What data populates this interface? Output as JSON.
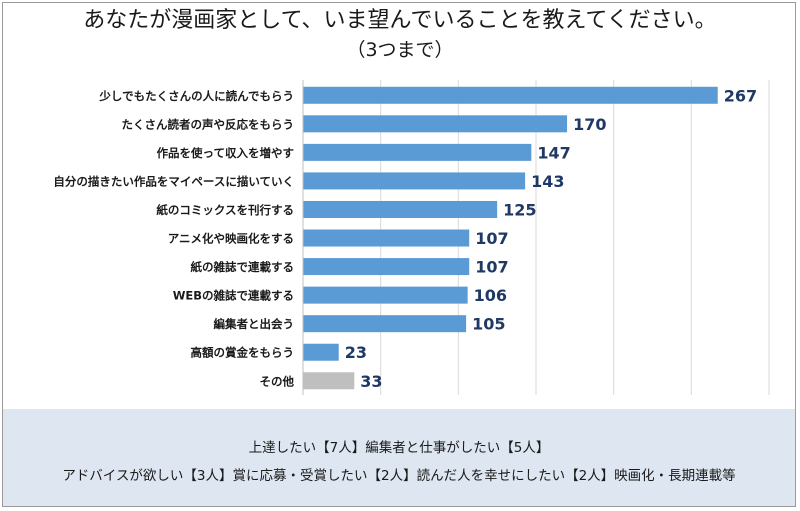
{
  "title": "あなたが漫画家として、いま望んでいることを教えてください。",
  "subtitle": "（3つまで）",
  "colors": {
    "bar": "#5b9bd5",
    "bar_other": "#bfbfbf",
    "value_label": "#1f3864",
    "grid": "#d9d9d9",
    "note_bg": "#dde6f1"
  },
  "chart_data": {
    "type": "bar",
    "orientation": "horizontal",
    "categories": [
      "少しでもたくさんの人に読んでもらう",
      "たくさん読者の声や反応をもらう",
      "作品を使って収入を増やす",
      "自分の描きたい作品をマイペースに描いていく",
      "紙のコミックスを刊行する",
      "アニメ化や映画化をする",
      "紙の雑誌で連載する",
      "WEBの雑誌で連載する",
      "編集者と出会う",
      "高額の賞金をもらう",
      "その他"
    ],
    "values": [
      267,
      170,
      147,
      143,
      125,
      107,
      107,
      106,
      105,
      23,
      33
    ],
    "value_labels": [
      "267",
      "170",
      "147",
      "143",
      "125",
      "107",
      "107",
      "106",
      "105",
      "23",
      "33"
    ],
    "highlight_gray_index": 10,
    "xlim": [
      0,
      300
    ],
    "grid": true
  },
  "notes": [
    "上達したい【7人】編集者と仕事がしたい【5人】",
    "アドバイスが欲しい【3人】賞に応募・受賞したい【2人】読んだ人を幸せにしたい【2人】映画化・長期連載等"
  ]
}
